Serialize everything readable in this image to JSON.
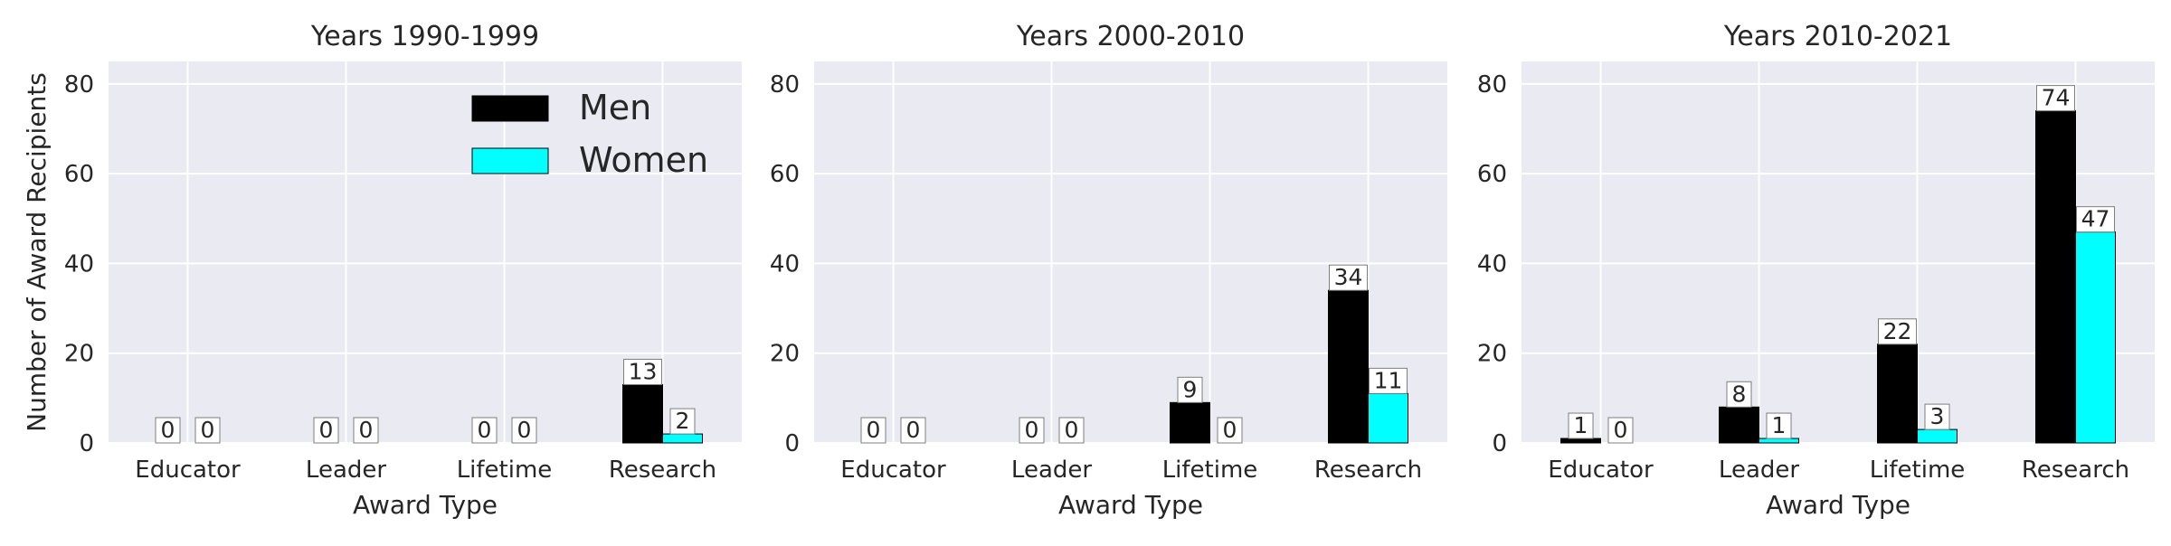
{
  "figure": {
    "ylabel": "Number of Award Recipients",
    "xlabel": "Award Type",
    "legend": {
      "position": "top-right",
      "items": [
        "Men",
        "Women"
      ]
    }
  },
  "colors": {
    "men": "#000000",
    "women": "#00ffff",
    "plot_bg": "#eaeaf2",
    "grid": "#ffffff",
    "text": "#262626"
  },
  "chart_data": [
    {
      "type": "bar",
      "title": "Years 1990-1999",
      "categories": [
        "Educator",
        "Leader",
        "Lifetime",
        "Research"
      ],
      "series": [
        {
          "name": "Men",
          "values": [
            0,
            0,
            0,
            13
          ]
        },
        {
          "name": "Women",
          "values": [
            0,
            0,
            0,
            2
          ]
        }
      ],
      "ylim": [
        0,
        85
      ],
      "yticks": [
        0,
        20,
        40,
        60,
        80
      ],
      "xlabel": "Award Type",
      "ylabel": "Number of Award Recipients",
      "grid": true,
      "legend": "top-right"
    },
    {
      "type": "bar",
      "title": "Years 2000-2010",
      "categories": [
        "Educator",
        "Leader",
        "Lifetime",
        "Research"
      ],
      "series": [
        {
          "name": "Men",
          "values": [
            0,
            0,
            9,
            34
          ]
        },
        {
          "name": "Women",
          "values": [
            0,
            0,
            0,
            11
          ]
        }
      ],
      "ylim": [
        0,
        85
      ],
      "yticks": [
        0,
        20,
        40,
        60,
        80
      ],
      "xlabel": "Award Type",
      "ylabel": "",
      "grid": true
    },
    {
      "type": "bar",
      "title": "Years 2010-2021",
      "categories": [
        "Educator",
        "Leader",
        "Lifetime",
        "Research"
      ],
      "series": [
        {
          "name": "Men",
          "values": [
            1,
            8,
            22,
            74
          ]
        },
        {
          "name": "Women",
          "values": [
            0,
            1,
            3,
            47
          ]
        }
      ],
      "ylim": [
        0,
        85
      ],
      "yticks": [
        0,
        20,
        40,
        60,
        80
      ],
      "xlabel": "Award Type",
      "ylabel": "",
      "grid": true
    }
  ]
}
